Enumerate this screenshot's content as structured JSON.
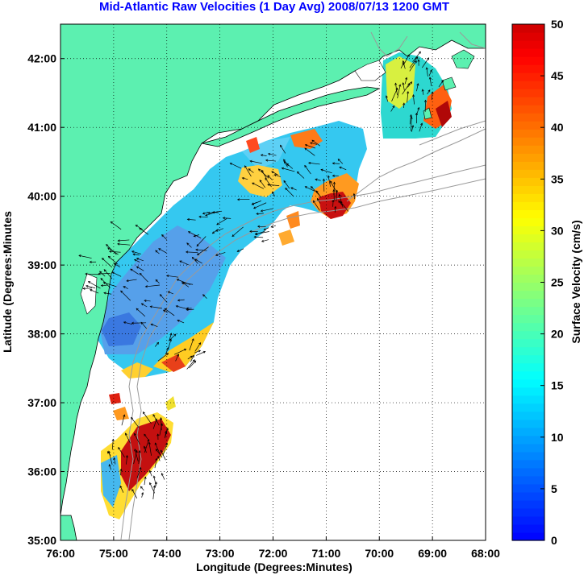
{
  "title": "Mid-Atlantic Raw Velocities (1 Day Avg) 2008/07/13 1200 GMT",
  "xlabel": "Longitude (Degrees:Minutes)",
  "ylabel": "Latitude (Degrees:Minutes",
  "colorbar_label": "Surface Velocity (cm/s)",
  "colors": {
    "land": "#5cf0b0",
    "water": "#ffffff",
    "coast": "#000000",
    "isobath": "#9a9a9a",
    "title": "#0000ff"
  },
  "map": {
    "lon_range": [
      -76,
      -68
    ],
    "lat_range": [
      35,
      42.5
    ],
    "x_ticks": [
      {
        "value": -76,
        "label": "76:00"
      },
      {
        "value": -75,
        "label": "75:00"
      },
      {
        "value": -74,
        "label": "74:00"
      },
      {
        "value": -73,
        "label": "73:00"
      },
      {
        "value": -72,
        "label": "72:00"
      },
      {
        "value": -71,
        "label": "71:00"
      },
      {
        "value": -70,
        "label": "70:00"
      },
      {
        "value": -69,
        "label": "69:00"
      },
      {
        "value": -68,
        "label": "68:00"
      }
    ],
    "y_ticks": [
      {
        "value": 35,
        "label": "35:00"
      },
      {
        "value": 36,
        "label": "36:00"
      },
      {
        "value": 37,
        "label": "37:00"
      },
      {
        "value": 38,
        "label": "38:00"
      },
      {
        "value": 39,
        "label": "39:00"
      },
      {
        "value": 40,
        "label": "40:00"
      },
      {
        "value": 41,
        "label": "41:00"
      },
      {
        "value": 42,
        "label": "42:00"
      }
    ],
    "grid": "dotted"
  },
  "colorbar": {
    "range": [
      0,
      50
    ],
    "ticks": [
      0,
      5,
      10,
      15,
      20,
      25,
      30,
      35,
      40,
      45,
      50
    ],
    "colormap": "jet"
  }
}
